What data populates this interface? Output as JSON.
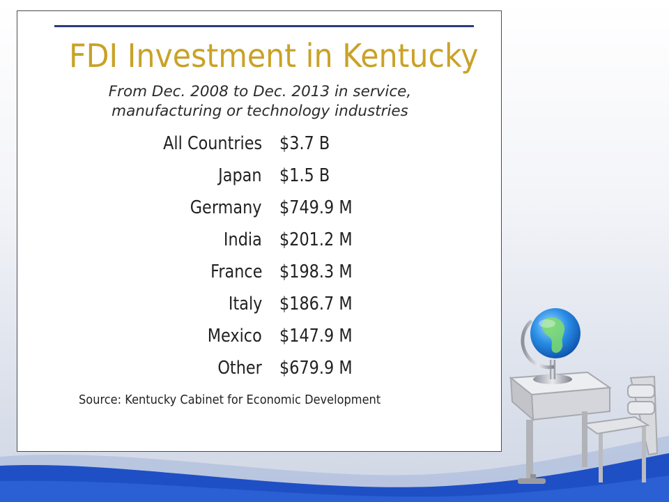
{
  "slide": {
    "title": "FDI Investment in Kentucky",
    "subtitle_line1": "From Dec. 2008 to Dec. 2013 in service,",
    "subtitle_line2": "manufacturing or technology industries",
    "rows": [
      {
        "country": "All Countries",
        "amount": "$3.7 B"
      },
      {
        "country": "Japan",
        "amount": "$1.5 B"
      },
      {
        "country": "Germany",
        "amount": "$749.9 M"
      },
      {
        "country": "India",
        "amount": "$201.2 M"
      },
      {
        "country": "France",
        "amount": "$198.3 M"
      },
      {
        "country": "Italy",
        "amount": "$186.7 M"
      },
      {
        "country": "Mexico",
        "amount": "$147.9 M"
      },
      {
        "country": "Other",
        "amount": "$679.9 M"
      }
    ],
    "source": "Source: Kentucky Cabinet for Economic Development"
  },
  "colors": {
    "title": "#c9a227",
    "rule": "#2c3a7c",
    "wave": "#1f4fc4"
  },
  "icons": {
    "clipart": "globe-on-school-desk-icon"
  }
}
